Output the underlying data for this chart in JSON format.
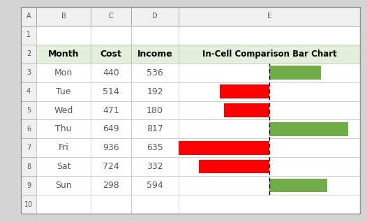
{
  "months": [
    "Mon",
    "Tue",
    "Wed",
    "Thu",
    "Fri",
    "Sat",
    "Sun"
  ],
  "cost": [
    440,
    514,
    471,
    649,
    936,
    724,
    298
  ],
  "income": [
    536,
    192,
    180,
    817,
    635,
    332,
    594
  ],
  "col_headers": [
    "Month",
    "Cost",
    "Income",
    "In-Cell Comparison Bar Chart"
  ],
  "col_letters": [
    "A",
    "B",
    "C",
    "D",
    "E"
  ],
  "header_bg": "#e2efda",
  "green_bar": "#70ad47",
  "red_bar": "#ff0000",
  "bar_max": 936,
  "data_font_color": "#595959",
  "outer_bg": "#d4d4d4",
  "row_number_color": "#595959",
  "col_letter_color": "#595959"
}
